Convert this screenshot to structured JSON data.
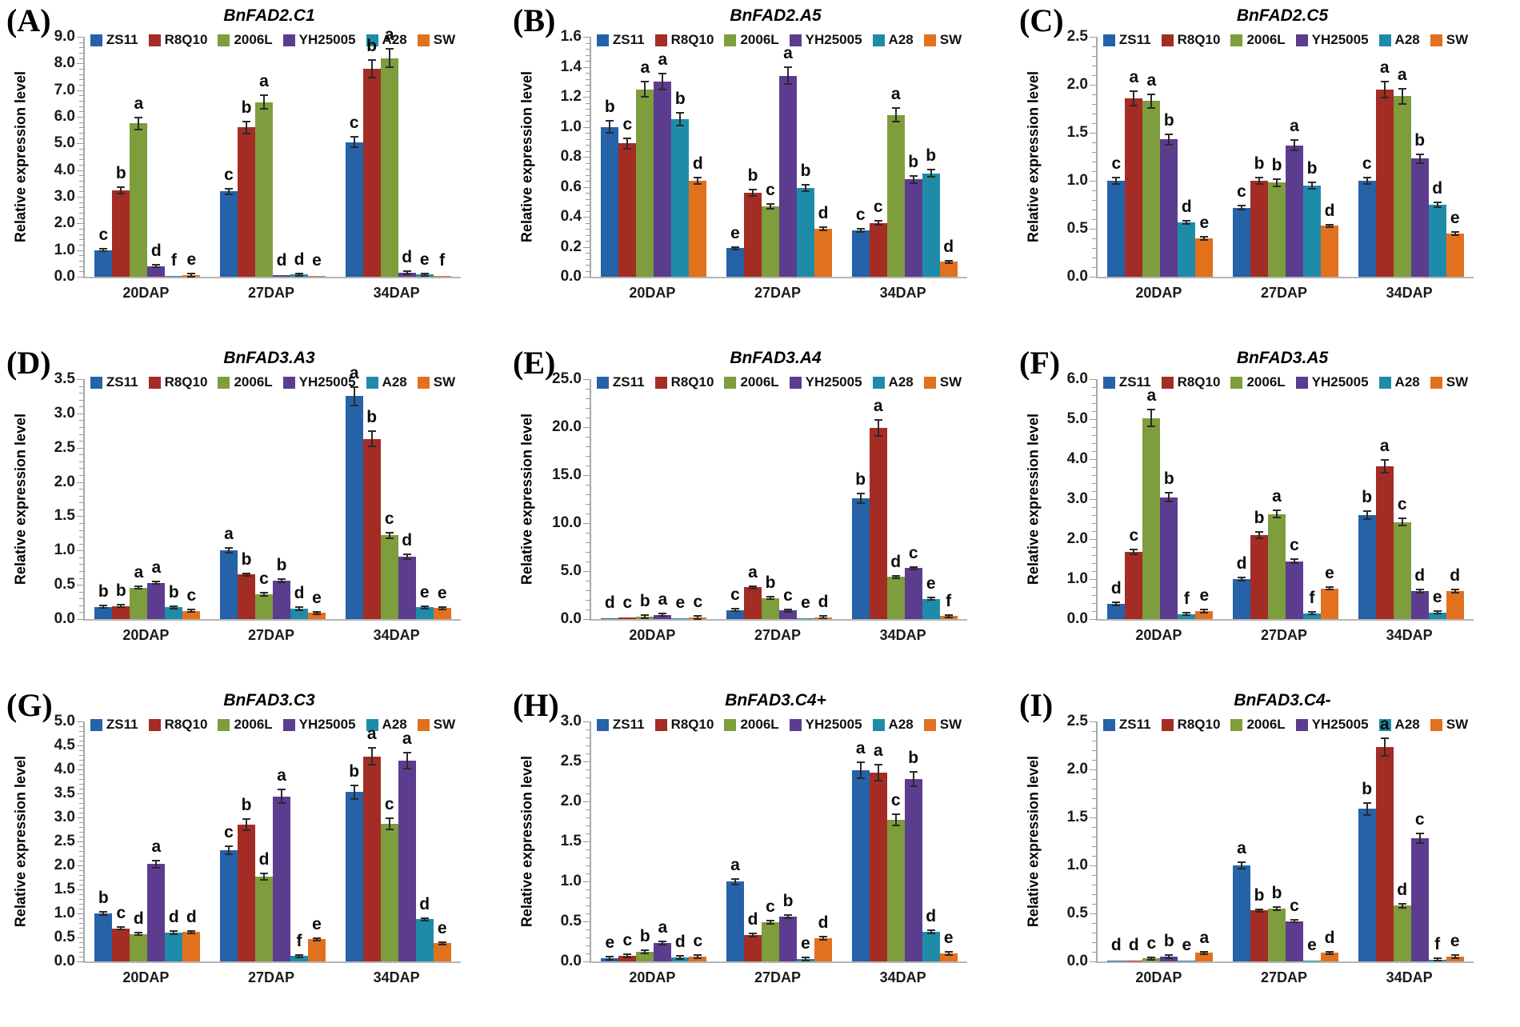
{
  "figure": {
    "ylabel": "Relative expression level",
    "categories": [
      "20DAP",
      "27DAP",
      "34DAP"
    ],
    "series": [
      {
        "name": "ZS11",
        "color": "#2562A8"
      },
      {
        "name": "R8Q10",
        "color": "#A32C24"
      },
      {
        "name": "2006L",
        "color": "#7E9D3C"
      },
      {
        "name": "YH25005",
        "color": "#5C3C8F"
      },
      {
        "name": "A28",
        "color": "#1E8CA9"
      },
      {
        "name": "SW",
        "color": "#E2711D"
      }
    ]
  },
  "chart_data": [
    {
      "type": "bar",
      "panel_letter": "(A)",
      "title": "BnFAD2.C1",
      "xlabel": "",
      "ylabel": "Relative expression level",
      "ylim": [
        0,
        9.0
      ],
      "ystep": 1.0,
      "legend_position": "top",
      "grid": false,
      "categories": [
        "20DAP",
        "27DAP",
        "34DAP"
      ],
      "series": [
        {
          "name": "ZS11",
          "values": [
            1.0,
            3.2,
            5.05
          ],
          "sig": [
            "c",
            "c",
            "c"
          ]
        },
        {
          "name": "R8Q10",
          "values": [
            3.25,
            5.6,
            7.8
          ],
          "sig": [
            "b",
            "b",
            "b"
          ]
        },
        {
          "name": "2006L",
          "values": [
            5.75,
            6.55,
            8.2
          ],
          "sig": [
            "a",
            "a",
            "a"
          ]
        },
        {
          "name": "YH25005",
          "values": [
            0.4,
            0.05,
            0.15
          ],
          "sig": [
            "d",
            "d",
            "d"
          ]
        },
        {
          "name": "A28",
          "values": [
            0.03,
            0.08,
            0.08
          ],
          "sig": [
            "f",
            "d",
            "e"
          ]
        },
        {
          "name": "SW",
          "values": [
            0.06,
            0.02,
            0.02
          ],
          "sig": [
            "e",
            "e",
            "f"
          ]
        }
      ]
    },
    {
      "type": "bar",
      "panel_letter": "(B)",
      "title": "BnFAD2.A5",
      "xlabel": "",
      "ylabel": "Relative expression level",
      "ylim": [
        0,
        1.6
      ],
      "ystep": 0.2,
      "legend_position": "top",
      "grid": false,
      "categories": [
        "20DAP",
        "27DAP",
        "34DAP"
      ],
      "series": [
        {
          "name": "ZS11",
          "values": [
            1.0,
            0.19,
            0.31
          ],
          "sig": [
            "b",
            "e",
            "c"
          ]
        },
        {
          "name": "R8Q10",
          "values": [
            0.89,
            0.56,
            0.36
          ],
          "sig": [
            "c",
            "b",
            "c"
          ]
        },
        {
          "name": "2006L",
          "values": [
            1.25,
            0.47,
            1.08
          ],
          "sig": [
            "a",
            "c",
            "a"
          ]
        },
        {
          "name": "YH25005",
          "values": [
            1.3,
            1.34,
            0.65
          ],
          "sig": [
            "a",
            "a",
            "b"
          ]
        },
        {
          "name": "A28",
          "values": [
            1.05,
            0.59,
            0.69
          ],
          "sig": [
            "b",
            "b",
            "b"
          ]
        },
        {
          "name": "SW",
          "values": [
            0.64,
            0.32,
            0.1
          ],
          "sig": [
            "d",
            "d",
            "d"
          ]
        }
      ]
    },
    {
      "type": "bar",
      "panel_letter": "(C)",
      "title": "BnFAD2.C5",
      "xlabel": "",
      "ylabel": "Relative expression level",
      "ylim": [
        0,
        2.5
      ],
      "ystep": 0.5,
      "legend_position": "top",
      "grid": false,
      "categories": [
        "20DAP",
        "27DAP",
        "34DAP"
      ],
      "series": [
        {
          "name": "ZS11",
          "values": [
            1.0,
            0.72,
            1.0
          ],
          "sig": [
            "c",
            "c",
            "c"
          ]
        },
        {
          "name": "R8Q10",
          "values": [
            1.86,
            1.0,
            1.95
          ],
          "sig": [
            "a",
            "b",
            "a"
          ]
        },
        {
          "name": "2006L",
          "values": [
            1.83,
            0.98,
            1.88
          ],
          "sig": [
            "a",
            "b",
            "a"
          ]
        },
        {
          "name": "YH25005",
          "values": [
            1.43,
            1.37,
            1.23
          ],
          "sig": [
            "b",
            "a",
            "b"
          ]
        },
        {
          "name": "A28",
          "values": [
            0.57,
            0.95,
            0.75
          ],
          "sig": [
            "d",
            "b",
            "d"
          ]
        },
        {
          "name": "SW",
          "values": [
            0.4,
            0.53,
            0.45
          ],
          "sig": [
            "e",
            "d",
            "e"
          ]
        }
      ]
    },
    {
      "type": "bar",
      "panel_letter": "(D)",
      "title": "BnFAD3.A3",
      "xlabel": "",
      "ylabel": "Relative expression level",
      "ylim": [
        0,
        3.5
      ],
      "ystep": 0.5,
      "legend_position": "top",
      "grid": false,
      "categories": [
        "20DAP",
        "27DAP",
        "34DAP"
      ],
      "series": [
        {
          "name": "ZS11",
          "values": [
            0.18,
            1.0,
            3.25
          ],
          "sig": [
            "b",
            "a",
            "a"
          ]
        },
        {
          "name": "R8Q10",
          "values": [
            0.19,
            0.65,
            2.63
          ],
          "sig": [
            "b",
            "b",
            "b"
          ]
        },
        {
          "name": "2006L",
          "values": [
            0.46,
            0.36,
            1.22
          ],
          "sig": [
            "a",
            "c",
            "c"
          ]
        },
        {
          "name": "YH25005",
          "values": [
            0.53,
            0.56,
            0.91
          ],
          "sig": [
            "a",
            "b",
            "d"
          ]
        },
        {
          "name": "A28",
          "values": [
            0.17,
            0.15,
            0.17
          ],
          "sig": [
            "b",
            "d",
            "e"
          ]
        },
        {
          "name": "SW",
          "values": [
            0.12,
            0.09,
            0.16
          ],
          "sig": [
            "c",
            "e",
            "e"
          ]
        }
      ]
    },
    {
      "type": "bar",
      "panel_letter": "(E)",
      "title": "BnFAD3.A4",
      "xlabel": "",
      "ylabel": "Relative expression level",
      "ylim": [
        0,
        25.0
      ],
      "ystep": 5.0,
      "legend_position": "top",
      "grid": false,
      "categories": [
        "20DAP",
        "27DAP",
        "34DAP"
      ],
      "series": [
        {
          "name": "ZS11",
          "values": [
            0.1,
            0.95,
            12.6
          ],
          "sig": [
            "d",
            "c",
            "b"
          ]
        },
        {
          "name": "R8Q10",
          "values": [
            0.15,
            3.3,
            19.9
          ],
          "sig": [
            "c",
            "a",
            "a"
          ]
        },
        {
          "name": "2006L",
          "values": [
            0.25,
            2.2,
            4.4
          ],
          "sig": [
            "b",
            "b",
            "d"
          ]
        },
        {
          "name": "YH25005",
          "values": [
            0.45,
            0.9,
            5.3
          ],
          "sig": [
            "a",
            "c",
            "c"
          ]
        },
        {
          "name": "A28",
          "values": [
            0.05,
            0.05,
            2.1
          ],
          "sig": [
            "e",
            "e",
            "e"
          ]
        },
        {
          "name": "SW",
          "values": [
            0.18,
            0.2,
            0.3
          ],
          "sig": [
            "c",
            "d",
            "f"
          ]
        }
      ]
    },
    {
      "type": "bar",
      "panel_letter": "(F)",
      "title": "BnFAD3.A5",
      "xlabel": "",
      "ylabel": "Relative expression level",
      "ylim": [
        0,
        6.0
      ],
      "ystep": 1.0,
      "legend_position": "top",
      "grid": false,
      "categories": [
        "20DAP",
        "27DAP",
        "34DAP"
      ],
      "series": [
        {
          "name": "ZS11",
          "values": [
            0.38,
            1.0,
            2.6
          ],
          "sig": [
            "d",
            "d",
            "b"
          ]
        },
        {
          "name": "R8Q10",
          "values": [
            1.68,
            2.1,
            3.82
          ],
          "sig": [
            "c",
            "b",
            "a"
          ]
        },
        {
          "name": "2006L",
          "values": [
            5.03,
            2.63,
            2.43
          ],
          "sig": [
            "a",
            "a",
            "c"
          ]
        },
        {
          "name": "YH25005",
          "values": [
            3.05,
            1.45,
            0.7
          ],
          "sig": [
            "b",
            "c",
            "d"
          ]
        },
        {
          "name": "A28",
          "values": [
            0.13,
            0.15,
            0.17
          ],
          "sig": [
            "f",
            "f",
            "e"
          ]
        },
        {
          "name": "SW",
          "values": [
            0.2,
            0.77,
            0.7
          ],
          "sig": [
            "e",
            "e",
            "d"
          ]
        }
      ]
    },
    {
      "type": "bar",
      "panel_letter": "(G)",
      "title": "BnFAD3.C3",
      "xlabel": "",
      "ylabel": "Relative expression level",
      "ylim": [
        0,
        5.0
      ],
      "ystep": 0.5,
      "legend_position": "top",
      "grid": false,
      "categories": [
        "20DAP",
        "27DAP",
        "34DAP"
      ],
      "series": [
        {
          "name": "ZS11",
          "values": [
            1.0,
            2.32,
            3.53
          ],
          "sig": [
            "b",
            "c",
            "b"
          ]
        },
        {
          "name": "R8Q10",
          "values": [
            0.69,
            2.85,
            4.27
          ],
          "sig": [
            "c",
            "b",
            "a"
          ]
        },
        {
          "name": "2006L",
          "values": [
            0.57,
            1.77,
            2.87
          ],
          "sig": [
            "d",
            "d",
            "c"
          ]
        },
        {
          "name": "YH25005",
          "values": [
            2.03,
            3.44,
            4.18
          ],
          "sig": [
            "a",
            "a",
            "a"
          ]
        },
        {
          "name": "A28",
          "values": [
            0.6,
            0.11,
            0.88
          ],
          "sig": [
            "d",
            "f",
            "d"
          ]
        },
        {
          "name": "SW",
          "values": [
            0.61,
            0.46,
            0.38
          ],
          "sig": [
            "d",
            "e",
            "e"
          ]
        }
      ]
    },
    {
      "type": "bar",
      "panel_letter": "(H)",
      "title": "BnFAD3.C4+",
      "xlabel": "",
      "ylabel": "Relative expression level",
      "ylim": [
        0,
        3.0
      ],
      "ystep": 0.5,
      "legend_position": "top",
      "grid": false,
      "categories": [
        "20DAP",
        "27DAP",
        "34DAP"
      ],
      "series": [
        {
          "name": "ZS11",
          "values": [
            0.04,
            1.0,
            2.39
          ],
          "sig": [
            "e",
            "a",
            "a"
          ]
        },
        {
          "name": "R8Q10",
          "values": [
            0.07,
            0.33,
            2.36
          ],
          "sig": [
            "c",
            "d",
            "a"
          ]
        },
        {
          "name": "2006L",
          "values": [
            0.12,
            0.49,
            1.77
          ],
          "sig": [
            "b",
            "c",
            "c"
          ]
        },
        {
          "name": "YH25005",
          "values": [
            0.23,
            0.56,
            2.28
          ],
          "sig": [
            "a",
            "b",
            "b"
          ]
        },
        {
          "name": "A28",
          "values": [
            0.05,
            0.03,
            0.37
          ],
          "sig": [
            "d",
            "e",
            "d"
          ]
        },
        {
          "name": "SW",
          "values": [
            0.06,
            0.29,
            0.1
          ],
          "sig": [
            "c",
            "d",
            "e"
          ]
        }
      ]
    },
    {
      "type": "bar",
      "panel_letter": "(I)",
      "title": "BnFAD3.C4-",
      "xlabel": "",
      "ylabel": "Relative expression level",
      "ylim": [
        0,
        2.5
      ],
      "ystep": 0.5,
      "legend_position": "top",
      "grid": false,
      "categories": [
        "20DAP",
        "27DAP",
        "34DAP"
      ],
      "series": [
        {
          "name": "ZS11",
          "values": [
            0.01,
            1.0,
            1.59
          ],
          "sig": [
            "d",
            "a",
            "b"
          ]
        },
        {
          "name": "R8Q10",
          "values": [
            0.01,
            0.53,
            2.23
          ],
          "sig": [
            "d",
            "b",
            "a"
          ]
        },
        {
          "name": "2006L",
          "values": [
            0.03,
            0.55,
            0.58
          ],
          "sig": [
            "c",
            "b",
            "d"
          ]
        },
        {
          "name": "YH25005",
          "values": [
            0.05,
            0.42,
            1.28
          ],
          "sig": [
            "b",
            "c",
            "c"
          ]
        },
        {
          "name": "A28",
          "values": [
            0.005,
            0.005,
            0.02
          ],
          "sig": [
            "e",
            "e",
            "f"
          ]
        },
        {
          "name": "SW",
          "values": [
            0.09,
            0.09,
            0.05
          ],
          "sig": [
            "a",
            "d",
            "e"
          ]
        }
      ]
    }
  ]
}
